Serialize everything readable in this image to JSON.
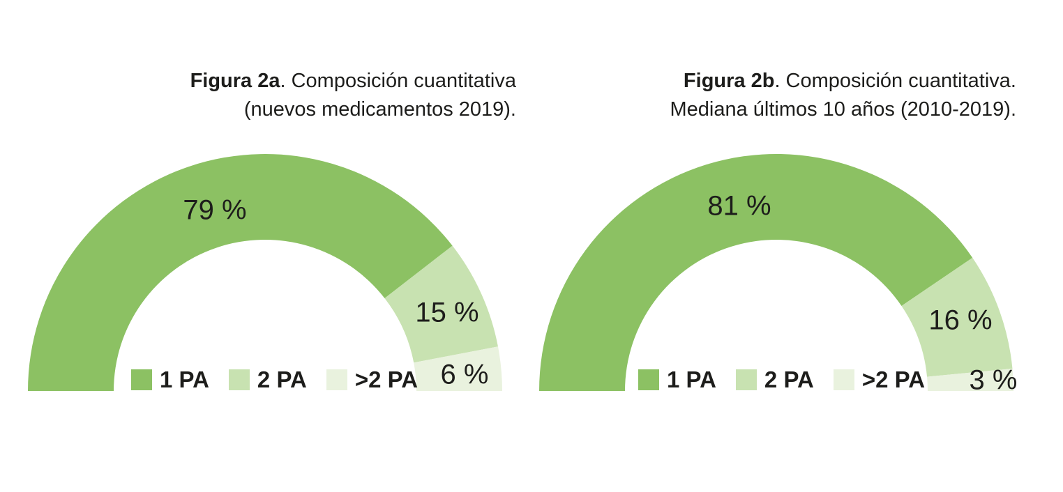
{
  "page": {
    "background": "#FFFFFF",
    "text_color": "#1D1D1B"
  },
  "chart_data": [
    {
      "type": "donut",
      "shape": "semicircle-gauge",
      "title": "Figura 2a. Composición cuantitativa (nuevos medicamentos 2019).",
      "categories": [
        "1 PA",
        "2 PA",
        ">2 PA"
      ],
      "values": [
        79,
        15,
        6
      ],
      "unit": "%",
      "colors": [
        "#8CC163",
        "#C8E2B1",
        "#E9F2DE"
      ],
      "start_angle_deg": 180,
      "end_angle_deg": 0,
      "legend_position": "bottom-inside",
      "grid": false
    },
    {
      "type": "donut",
      "shape": "semicircle-gauge",
      "title": "Figura 2b. Composición cuantitativa. Mediana últimos 10 años (2010-2019).",
      "categories": [
        "1 PA",
        "2 PA",
        ">2 PA"
      ],
      "values": [
        81,
        16,
        3
      ],
      "unit": "%",
      "colors": [
        "#8CC163",
        "#C8E2B1",
        "#E9F2DE"
      ],
      "start_angle_deg": 180,
      "end_angle_deg": 0,
      "legend_position": "bottom-inside",
      "grid": false
    }
  ],
  "figures": [
    {
      "title_bold": "Figura 2a",
      "title_after": ". Composición cuantitativa",
      "title_line2": "(nuevos medicamentos 2019).",
      "labels": [
        "79 %",
        "15 %",
        "6 %"
      ],
      "legend": [
        "1 PA",
        "2 PA",
        ">2 PA"
      ]
    },
    {
      "title_bold": "Figura 2b",
      "title_after": ". Composición cuantitativa.",
      "title_line2": "Mediana últimos 10 años (2010-2019).",
      "labels": [
        "81 %",
        "16 %",
        "3 %"
      ],
      "legend": [
        "1 PA",
        "2 PA",
        ">2 PA"
      ]
    }
  ]
}
